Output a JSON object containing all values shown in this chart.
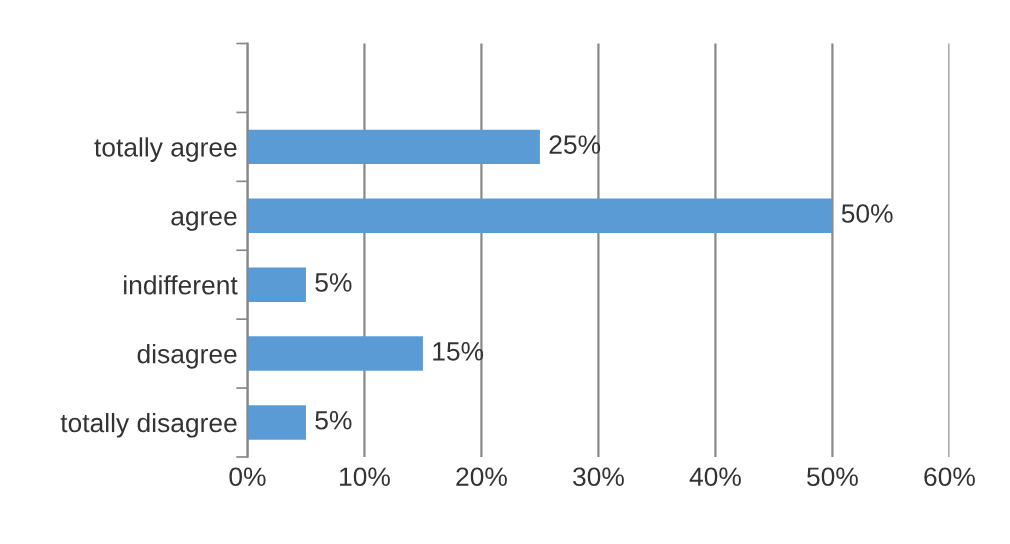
{
  "chart_data": {
    "type": "bar",
    "orientation": "horizontal",
    "categories": [
      null,
      "totally agree",
      "agree",
      "indifferent",
      "disagree",
      "totally disagree"
    ],
    "values": [
      null,
      25,
      50,
      5,
      15,
      5
    ],
    "value_labels": [
      null,
      "25%",
      "50%",
      "5%",
      "15%",
      "5%"
    ],
    "color": "#5b9bd5",
    "xlim": [
      0,
      60
    ],
    "xticks": [
      {
        "value": 0,
        "label": "0%"
      },
      {
        "value": 10,
        "label": "10%"
      },
      {
        "value": 20,
        "label": "20%"
      },
      {
        "value": 30,
        "label": "30%"
      },
      {
        "value": 40,
        "label": "40%"
      },
      {
        "value": 50,
        "label": "50%"
      },
      {
        "value": 60,
        "label": "60%"
      }
    ],
    "grid": "x",
    "legend": false
  }
}
